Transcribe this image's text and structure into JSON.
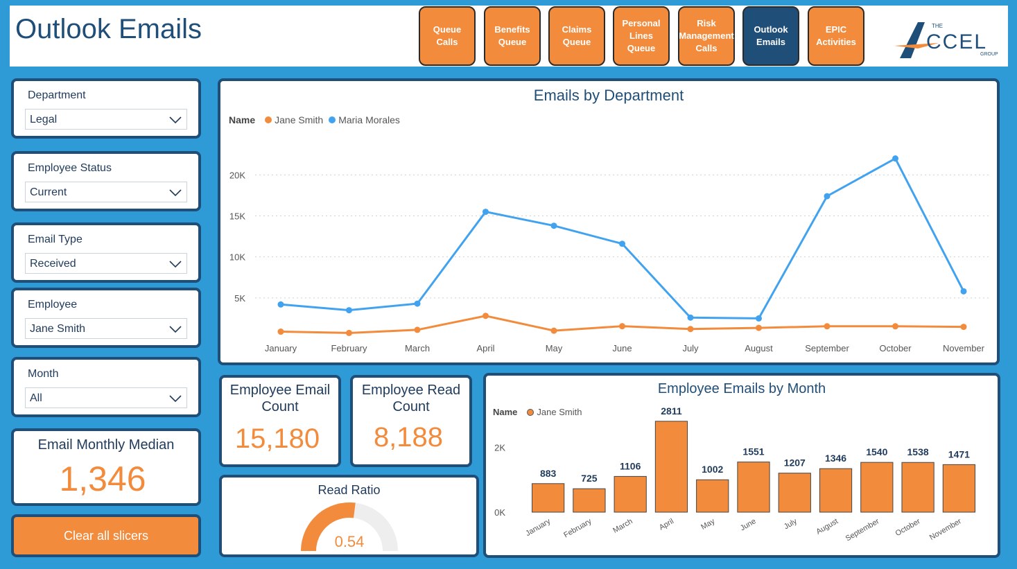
{
  "header": {
    "title": "Outlook Emails",
    "nav": [
      {
        "label": "Queue Calls",
        "active": false
      },
      {
        "label": "Benefits Queue",
        "active": false
      },
      {
        "label": "Claims Queue",
        "active": false
      },
      {
        "label": "Personal Lines Queue",
        "active": false
      },
      {
        "label": "Risk Management Calls",
        "active": false
      },
      {
        "label": "Outlook Emails",
        "active": true
      },
      {
        "label": "EPIC Activities",
        "active": false
      }
    ],
    "logo": {
      "prefix": "THE",
      "name": "CCEL",
      "suffix": "GROUP"
    }
  },
  "slicers": {
    "department": {
      "label": "Department",
      "value": "Legal"
    },
    "employee_status": {
      "label": "Employee Status",
      "value": "Current"
    },
    "email_type": {
      "label": "Email Type",
      "value": "Received"
    },
    "employee": {
      "label": "Employee",
      "value": "Jane Smith"
    },
    "month": {
      "label": "Month",
      "value": "All"
    }
  },
  "kpis": {
    "monthly_median": {
      "label": "Email Monthly Median",
      "value": "1,346"
    },
    "email_count": {
      "label": "Employee Email Count",
      "value": "15,180"
    },
    "read_count": {
      "label": "Employee Read Count",
      "value": "8,188"
    },
    "read_ratio": {
      "label": "Read Ratio",
      "value": "0.54",
      "fraction": 0.54
    }
  },
  "clear_button": {
    "label": "Clear all slicers"
  },
  "colors": {
    "orange": "#f28b3c",
    "blue": "#41a3ef",
    "navy": "#1f4e79"
  },
  "chart_data": [
    {
      "type": "line",
      "title": "Emails by Department",
      "legend_title": "Name",
      "categories": [
        "January",
        "February",
        "March",
        "April",
        "May",
        "June",
        "July",
        "August",
        "September",
        "October",
        "November"
      ],
      "series": [
        {
          "name": "Jane Smith",
          "color": "#f28b3c",
          "values": [
            883,
            725,
            1106,
            2811,
            1002,
            1551,
            1207,
            1346,
            1540,
            1538,
            1471
          ]
        },
        {
          "name": "Maria Morales",
          "color": "#41a3ef",
          "values": [
            4200,
            3500,
            4300,
            15500,
            13800,
            11600,
            2600,
            2500,
            17400,
            22000,
            5800
          ]
        }
      ],
      "y_ticks": [
        "5K",
        "10K",
        "15K",
        "20K"
      ],
      "y_tick_values": [
        5000,
        10000,
        15000,
        20000
      ],
      "ylim": [
        0,
        24000
      ]
    },
    {
      "type": "bar",
      "title": "Employee Emails by Month",
      "legend_title": "Name",
      "categories": [
        "January",
        "February",
        "March",
        "April",
        "May",
        "June",
        "July",
        "August",
        "September",
        "October",
        "November"
      ],
      "series": [
        {
          "name": "Jane Smith",
          "color": "#f28b3c",
          "values": [
            883,
            725,
            1106,
            2811,
            1002,
            1551,
            1207,
            1346,
            1540,
            1538,
            1471
          ]
        }
      ],
      "labels": [
        "883",
        "725",
        "1106",
        "2811",
        "1002",
        "1551",
        "1207",
        "1346",
        "1540",
        "1538",
        "1471"
      ],
      "y_ticks": [
        "0K",
        "2K"
      ],
      "y_tick_values": [
        0,
        2000
      ],
      "ylim": [
        0,
        3000
      ]
    }
  ]
}
